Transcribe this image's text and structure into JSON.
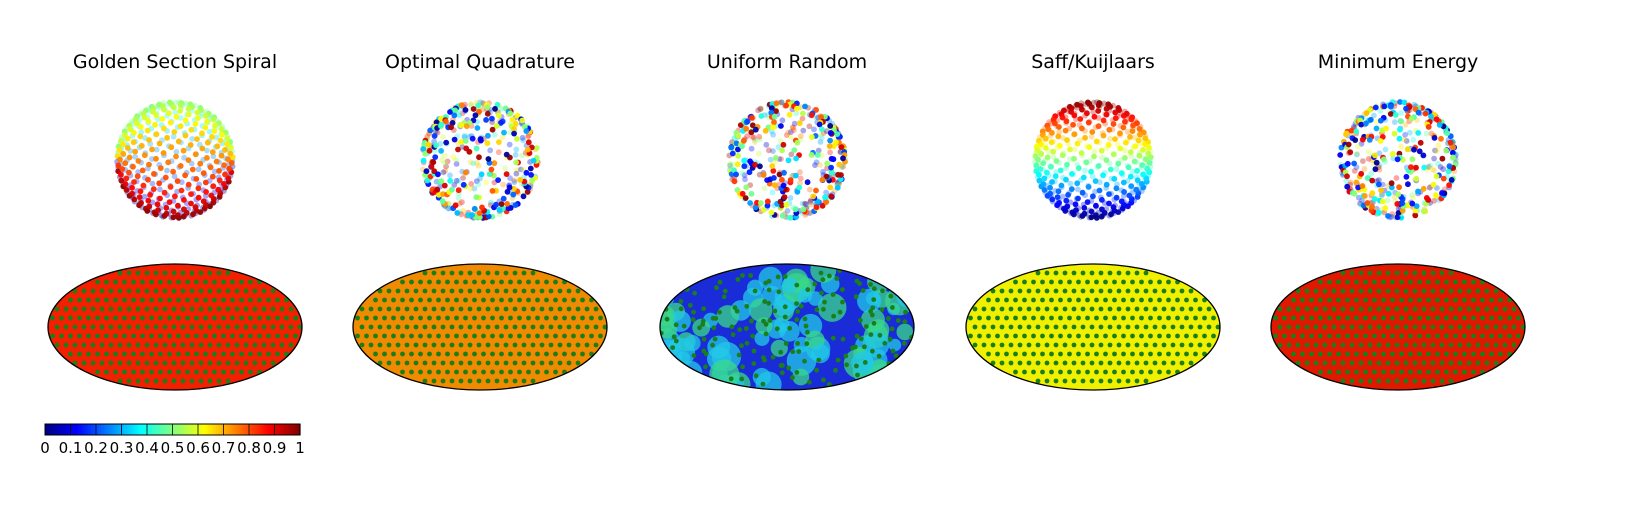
{
  "figure": {
    "panels": [
      {
        "title": "Golden Section Spiral",
        "sphere_pattern": "spiral",
        "map_base_color": "#f21f00",
        "map_dot_color": "#1a7f1a"
      },
      {
        "title": "Optimal Quadrature",
        "sphere_pattern": "random",
        "map_base_color": "#f08a00",
        "map_dot_color": "#1a7f1a"
      },
      {
        "title": "Uniform Random",
        "sphere_pattern": "random",
        "map_base_color": "#1a2cd8",
        "map_dot_color": "#1a7f1a"
      },
      {
        "title": "Saff/Kuijlaars",
        "sphere_pattern": "latitude",
        "map_base_color": "#f0f000",
        "map_dot_color": "#1a7f1a"
      },
      {
        "title": "Minimum Energy",
        "sphere_pattern": "random",
        "map_base_color": "#e01800",
        "map_dot_color": "#1a7f1a"
      }
    ]
  },
  "chart_data": {
    "type": "heatmap",
    "projection": "mollweide",
    "colormap": "jet",
    "colorbar": {
      "range": [
        0,
        1
      ],
      "tick_labels": [
        "0",
        "0.1",
        "0.2",
        "0.3",
        "0.4",
        "0.5",
        "0.6",
        "0.7",
        "0.8",
        "0.9",
        "1"
      ]
    },
    "titles": [
      "Golden Section Spiral",
      "Optimal Quadrature",
      "Uniform Random",
      "Saff/Kuijlaars",
      "Minimum Energy"
    ]
  }
}
